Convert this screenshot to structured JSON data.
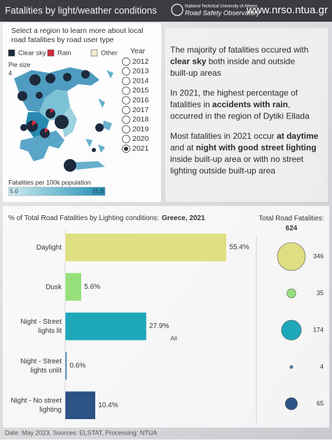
{
  "header": {
    "title": "Fatalities by light/weather conditions",
    "org_line1": "National Technical University of Athens",
    "org_line2": "Road Safety Observatory",
    "url": "www.nrso.ntua.gr"
  },
  "map_panel": {
    "instruction": [
      "Select a region to learn more about local",
      "road fatalities by road user type"
    ],
    "legend": [
      {
        "label": "Clear sky",
        "color": "#1c2a3c"
      },
      {
        "label": "Rain",
        "color": "#d22a3e"
      },
      {
        "label": "Other",
        "color": "#f3ead0"
      }
    ],
    "pie_size_label": "Pie size",
    "pie_size": 4,
    "color_scale": {
      "title": "Fatalities per 100k population",
      "min": {
        "value": 5,
        "label": "5.0"
      },
      "max": {
        "value": 15,
        "label": "15.0"
      },
      "colors": [
        "#cfeef2",
        "#1f8fb4"
      ]
    }
  },
  "year_filter": {
    "title": "Year",
    "years": [
      2012,
      2013,
      2014,
      2015,
      2016,
      2017,
      2018,
      2019,
      2020,
      2021
    ],
    "selected": 2021
  },
  "text_panel": [
    [
      [
        {
          "text": "The majority of fatalities occured with"
        }
      ],
      [
        {
          "text": "clear sky",
          "bold": true
        },
        {
          "text": " both inside and outside"
        }
      ],
      [
        {
          "text": "built-up areas"
        }
      ]
    ],
    [
      [
        {
          "text": "In 2021, the highest percentage of"
        }
      ],
      [
        {
          "text": "fatalities in "
        },
        {
          "text": "accidents with rain",
          "bold": true
        },
        {
          "text": ","
        }
      ],
      [
        {
          "text": "occurred in the region of Dytiki Ellada"
        }
      ]
    ],
    [
      [
        {
          "text": "Most fatalities in 2021 occur "
        },
        {
          "text": "at daytime",
          "bold": true
        }
      ],
      [
        {
          "text": "and at "
        },
        {
          "text": "night with good street lighting",
          "bold": true
        }
      ],
      [
        {
          "text": "inside built-up area or with no street"
        }
      ],
      [
        {
          "text": "lighting outside built-up area"
        }
      ]
    ]
  ],
  "chart_data": [
    {
      "type": "bar",
      "orientation": "horizontal",
      "title": "% of Total Road Fatalities by Lighting conditions:",
      "title_highlight": "Greece, 2021",
      "categories": [
        "Daylight",
        "Dusk",
        "Night - Street\nlights lit",
        "Night - Street\nlights unlit",
        "Night - No street\nlighting"
      ],
      "values": [
        55.4,
        5.6,
        27.9,
        0.6,
        10.4
      ],
      "value_labels": [
        "55.4%",
        "5.6%",
        "27.9%",
        "0.6%",
        "10.4%"
      ],
      "colors": [
        "#dede82",
        "#96e07c",
        "#1fa8ba",
        "#4c82b4",
        "#2c5384"
      ],
      "xlim": [
        0,
        63
      ],
      "center_label": "All"
    },
    {
      "type": "bubble",
      "title": "Total Road Fatalities:",
      "total": 624,
      "values": [
        346,
        35,
        174,
        4,
        65
      ],
      "colors": [
        "#dede82",
        "#96e07c",
        "#1fa8ba",
        "#4c82b4",
        "#2c5384"
      ]
    }
  ],
  "footer": "Date: May 2023, Sources: ELSTAT, Processing: NTUA"
}
